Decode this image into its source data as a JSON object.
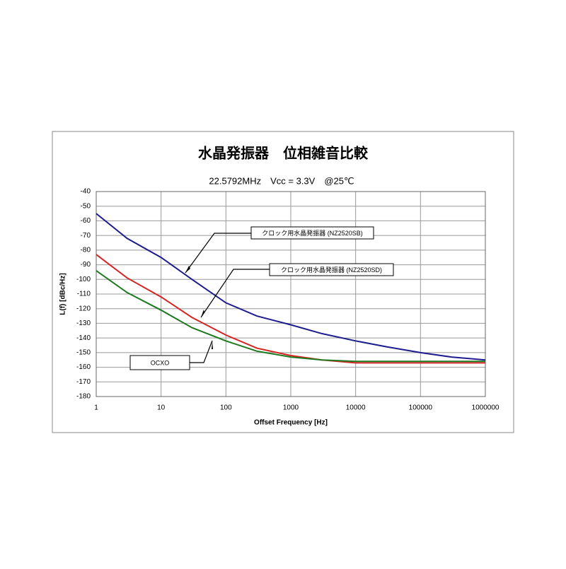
{
  "chart_data": {
    "type": "line",
    "title": "水晶発振器　位相雑音比較",
    "subtitle": "22.5792MHz　Vcc = 3.3V　@25℃",
    "x_label": "Offset Frequency [Hz]",
    "y_label": "L(f) [dBc/Hz]",
    "x": [
      1,
      3,
      10,
      30,
      100,
      300,
      1000,
      3000,
      10000,
      30000,
      100000,
      300000,
      1000000
    ],
    "series": [
      {
        "name": "クロック用水晶発振器 (NZ2520SB)",
        "color": "#1c1c8e",
        "values": [
          -55,
          -72,
          -85,
          -100,
          -116,
          -125,
          -131,
          -137,
          -142,
          -146,
          -150,
          -153,
          -155
        ]
      },
      {
        "name": "クロック用水晶発振器 (NZ2520SD)",
        "color": "#d42424",
        "values": [
          -83,
          -99,
          -112,
          -126,
          -138,
          -147,
          -152,
          -155,
          -157,
          -157,
          -157,
          -157,
          -157
        ]
      },
      {
        "name": "OCXO",
        "color": "#1e7a1e",
        "values": [
          -94,
          -109,
          -121,
          -133,
          -142,
          -149,
          -153,
          -155,
          -156,
          -156,
          -156,
          -156,
          -156
        ]
      }
    ],
    "xlim": [
      1,
      1000000
    ],
    "xticks": [
      1,
      10,
      100,
      1000,
      10000,
      100000,
      1000000
    ],
    "x_log": true,
    "ylim": [
      -180,
      -40
    ],
    "yticks": [
      -40,
      -50,
      -60,
      -70,
      -80,
      -90,
      -100,
      -110,
      -120,
      -130,
      -140,
      -150,
      -160,
      -170,
      -180
    ],
    "grid": true
  }
}
